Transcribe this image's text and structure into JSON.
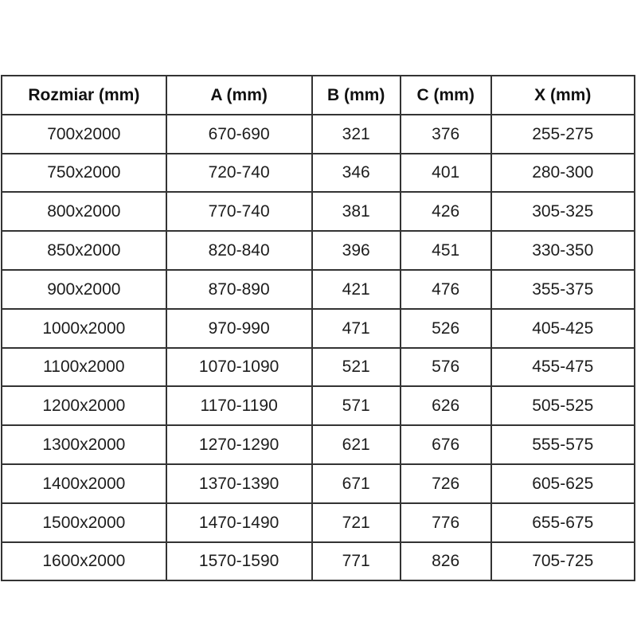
{
  "colors": {
    "background": "#ffffff",
    "grid_line": "#333333",
    "text": "#1d1d1d"
  },
  "table": {
    "headers": [
      "Rozmiar (mm)",
      "A (mm)",
      "B (mm)",
      "C (mm)",
      "X (mm)"
    ],
    "rows": [
      [
        "700x2000",
        "670-690",
        "321",
        "376",
        "255-275"
      ],
      [
        "750x2000",
        "720-740",
        "346",
        "401",
        "280-300"
      ],
      [
        "800x2000",
        "770-740",
        "381",
        "426",
        "305-325"
      ],
      [
        "850x2000",
        "820-840",
        "396",
        "451",
        "330-350"
      ],
      [
        "900x2000",
        "870-890",
        "421",
        "476",
        "355-375"
      ],
      [
        "1000x2000",
        "970-990",
        "471",
        "526",
        "405-425"
      ],
      [
        "1100x2000",
        "1070-1090",
        "521",
        "576",
        "455-475"
      ],
      [
        "1200x2000",
        "1170-1190",
        "571",
        "626",
        "505-525"
      ],
      [
        "1300x2000",
        "1270-1290",
        "621",
        "676",
        "555-575"
      ],
      [
        "1400x2000",
        "1370-1390",
        "671",
        "726",
        "605-625"
      ],
      [
        "1500x2000",
        "1470-1490",
        "721",
        "776",
        "655-675"
      ],
      [
        "1600x2000",
        "1570-1590",
        "771",
        "826",
        "705-725"
      ]
    ]
  },
  "chart_data": {
    "type": "table",
    "title": "",
    "columns": [
      "Rozmiar (mm)",
      "A (mm)",
      "B (mm)",
      "C (mm)",
      "X (mm)"
    ],
    "rows": [
      [
        "700x2000",
        "670-690",
        "321",
        "376",
        "255-275"
      ],
      [
        "750x2000",
        "720-740",
        "346",
        "401",
        "280-300"
      ],
      [
        "800x2000",
        "770-740",
        "381",
        "426",
        "305-325"
      ],
      [
        "850x2000",
        "820-840",
        "396",
        "451",
        "330-350"
      ],
      [
        "900x2000",
        "870-890",
        "421",
        "476",
        "355-375"
      ],
      [
        "1000x2000",
        "970-990",
        "471",
        "526",
        "405-425"
      ],
      [
        "1100x2000",
        "1070-1090",
        "521",
        "576",
        "455-475"
      ],
      [
        "1200x2000",
        "1170-1190",
        "571",
        "626",
        "505-525"
      ],
      [
        "1300x2000",
        "1270-1290",
        "621",
        "676",
        "555-575"
      ],
      [
        "1400x2000",
        "1370-1390",
        "671",
        "726",
        "605-625"
      ],
      [
        "1500x2000",
        "1470-1490",
        "721",
        "776",
        "655-675"
      ],
      [
        "1600x2000",
        "1570-1590",
        "771",
        "826",
        "705-725"
      ]
    ]
  }
}
